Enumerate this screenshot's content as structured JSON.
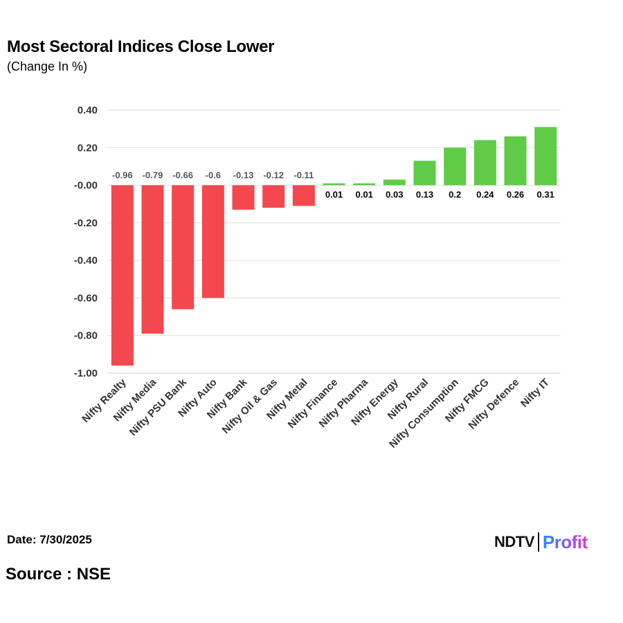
{
  "title": "Most Sectoral Indices Close Lower",
  "subtitle": "(Change In %)",
  "date_text": "Date: 7/30/2025",
  "source_text": "Source : NSE",
  "logo": {
    "left": "NDTV",
    "right": "Profit"
  },
  "colors": {
    "negative": "#f4474e",
    "positive": "#5fcb47",
    "grid": "#dddddd",
    "neg_label": "#555555",
    "pos_label": "#000000"
  },
  "chart_data": {
    "type": "bar",
    "title": "Most Sectoral Indices Close Lower",
    "subtitle": "(Change In %)",
    "categories": [
      "Nifty Realty",
      "Nifty Media",
      "Nifty PSU Bank",
      "Nifty Auto",
      "Nifty Bank",
      "Nifty Oil & Gas",
      "Nifty Metal",
      "Nifty Finance",
      "Nifty Pharma",
      "Nifty Energy",
      "Nifty Rural",
      "Nifty Consumption",
      "Nifty FMCG",
      "Nifty Defence",
      "Nifty IT"
    ],
    "values": [
      -0.96,
      -0.79,
      -0.66,
      -0.6,
      -0.13,
      -0.12,
      -0.11,
      0.01,
      0.01,
      0.03,
      0.13,
      0.2,
      0.24,
      0.26,
      0.31
    ],
    "value_labels": [
      "-0.96",
      "-0.79",
      "-0.66",
      "-0.6",
      "-0.13",
      "-0.12",
      "-0.11",
      "0.01",
      "0.01",
      "0.03",
      "0.13",
      "0.2",
      "0.24",
      "0.26",
      "0.31"
    ],
    "ylim": [
      -1.0,
      0.4
    ],
    "yticks": [
      0.4,
      0.2,
      0.0,
      -0.2,
      -0.4,
      -0.6,
      -0.8,
      -1.0
    ],
    "ytick_labels": [
      "0.40",
      "0.20",
      "-0.00",
      "-0.20",
      "-0.40",
      "-0.60",
      "-0.80",
      "-1.00"
    ],
    "grid": true,
    "legend": "none"
  }
}
